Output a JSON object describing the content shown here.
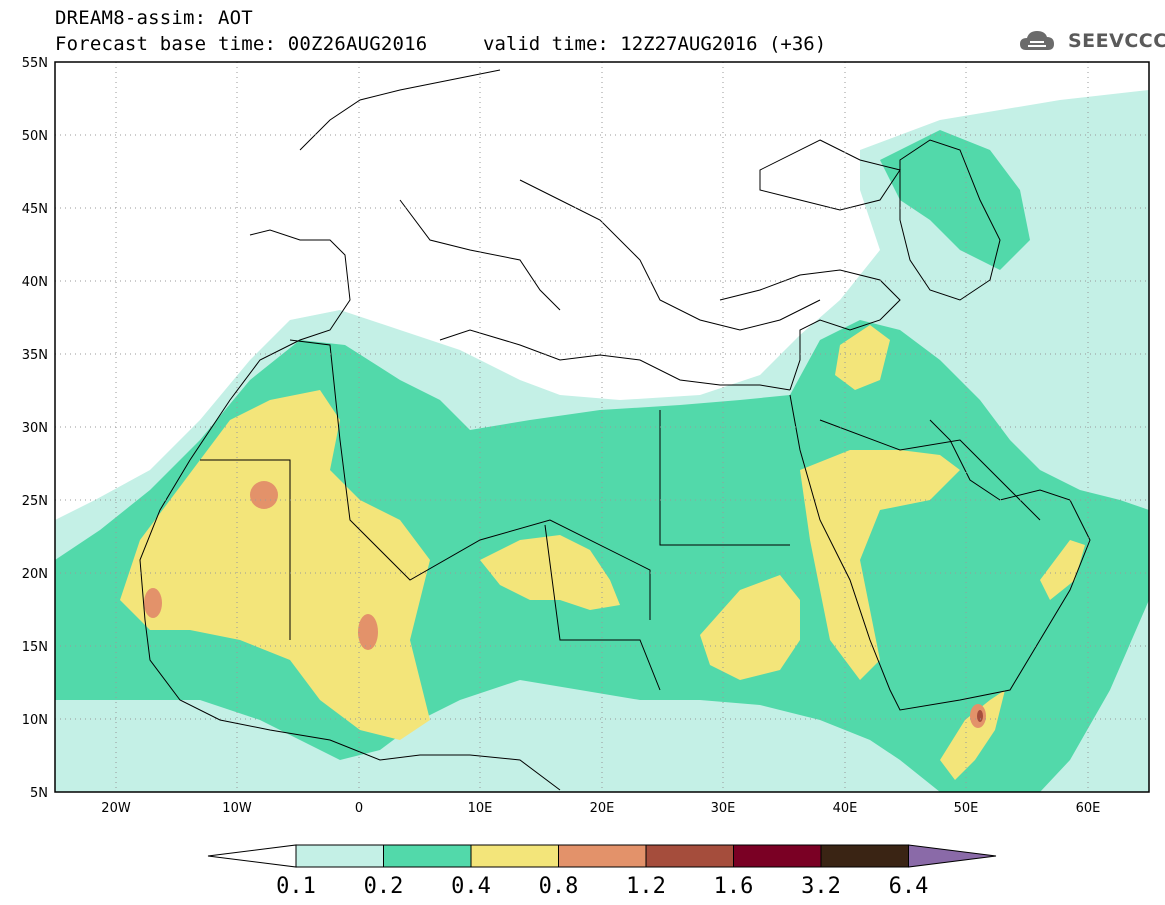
{
  "header": {
    "title": "DREAM8-assim: AOT",
    "base_time": "Forecast base time: 00Z26AUG2016",
    "valid_time": "valid time: 12Z27AUG2016 (+36)",
    "logo_text": "SEEVCCC"
  },
  "map": {
    "lon_range": [
      -25,
      65
    ],
    "lat_range": [
      5,
      55
    ],
    "lat_ticks": [
      "55N",
      "50N",
      "45N",
      "40N",
      "35N",
      "30N",
      "25N",
      "20N",
      "15N",
      "10N",
      "5N"
    ],
    "lon_ticks": [
      "20W",
      "10W",
      "0",
      "10E",
      "20E",
      "30E",
      "40E",
      "50E",
      "60E"
    ],
    "background": "#ffffff"
  },
  "colorbar": {
    "labels": [
      "0.1",
      "0.2",
      "0.4",
      "0.8",
      "1.2",
      "1.6",
      "3.2",
      "6.4"
    ],
    "colors": [
      "#c4f0e6",
      "#52d9aa",
      "#f3e57a",
      "#e3926a",
      "#a54d3c",
      "#7a0024",
      "#3a2414",
      "#8a6aa8"
    ],
    "low_color": "#ffffff"
  },
  "palette": {
    "c01": "#c4f0e6",
    "c02": "#52d9aa",
    "c04": "#f3e57a",
    "c08": "#e3926a"
  }
}
